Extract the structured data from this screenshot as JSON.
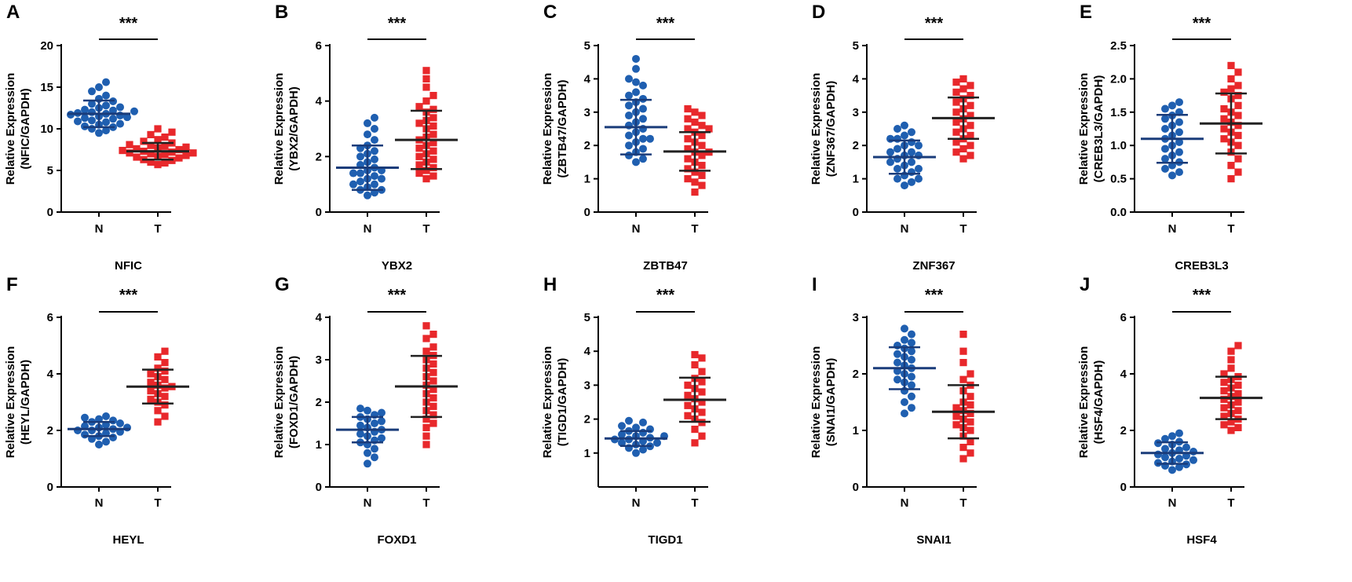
{
  "figure": {
    "ylabel_line1": "Relative Expression",
    "colors": {
      "normal": "#1f5fb0",
      "tumor": "#e8282b",
      "axis": "#000000"
    }
  },
  "chart_data": [
    {
      "type": "scatter",
      "panel": "A",
      "gene": "NFIC",
      "ylabel": "Relative Expression (NFIC/GAPDH)",
      "ylabel_line2": "(NFIC/GAPDH)",
      "categories": [
        "N",
        "T"
      ],
      "ylim": [
        0,
        20
      ],
      "yticks": [
        "0",
        "5",
        "10",
        "15",
        "20"
      ],
      "significance": "***",
      "series": [
        {
          "name": "N",
          "mean": 11.8,
          "sd": 1.6,
          "values": [
            9.5,
            9.8,
            10.0,
            10.2,
            10.3,
            10.5,
            10.6,
            10.8,
            10.9,
            11.0,
            11.2,
            11.3,
            11.4,
            11.5,
            11.6,
            11.7,
            11.8,
            11.9,
            12.0,
            12.1,
            12.2,
            12.3,
            12.5,
            12.6,
            12.8,
            13.0,
            13.3,
            13.6,
            14.0,
            14.5,
            15.0,
            15.6
          ]
        },
        {
          "name": "T",
          "mean": 7.3,
          "sd": 1.0,
          "values": [
            5.7,
            5.9,
            6.0,
            6.2,
            6.3,
            6.5,
            6.6,
            6.7,
            6.8,
            6.9,
            7.0,
            7.1,
            7.1,
            7.2,
            7.3,
            7.4,
            7.5,
            7.6,
            7.7,
            7.8,
            7.9,
            8.0,
            8.1,
            8.3,
            8.5,
            8.7,
            9.0,
            9.3,
            9.6,
            10.0
          ]
        }
      ]
    },
    {
      "type": "scatter",
      "panel": "B",
      "gene": "YBX2",
      "ylabel": "Relative Expression (YBX2/GAPDH)",
      "ylabel_line2": "(YBX2/GAPDH)",
      "categories": [
        "N",
        "T"
      ],
      "ylim": [
        0,
        6
      ],
      "yticks": [
        "0",
        "2",
        "4",
        "6"
      ],
      "significance": "***",
      "series": [
        {
          "name": "N",
          "mean": 1.6,
          "sd": 0.8,
          "values": [
            0.6,
            0.7,
            0.8,
            0.8,
            0.9,
            1.0,
            1.0,
            1.1,
            1.2,
            1.2,
            1.3,
            1.4,
            1.4,
            1.5,
            1.5,
            1.6,
            1.7,
            1.8,
            1.9,
            2.0,
            2.1,
            2.2,
            2.3,
            2.4,
            2.6,
            2.8,
            3.0,
            3.2,
            3.4
          ]
        },
        {
          "name": "T",
          "mean": 2.6,
          "sd": 1.05,
          "values": [
            1.2,
            1.3,
            1.4,
            1.5,
            1.6,
            1.7,
            1.8,
            1.9,
            2.0,
            2.1,
            2.2,
            2.3,
            2.4,
            2.5,
            2.6,
            2.7,
            2.8,
            3.0,
            3.1,
            3.2,
            3.3,
            3.4,
            3.6,
            3.7,
            3.8,
            4.0,
            4.2,
            4.5,
            4.8,
            5.1
          ]
        }
      ]
    },
    {
      "type": "scatter",
      "panel": "C",
      "gene": "ZBTB47",
      "ylabel": "Relative Expression (ZBTB47/GAPDH)",
      "ylabel_line2": "(ZBTB47/GAPDH)",
      "categories": [
        "N",
        "T"
      ],
      "ylim": [
        0,
        5
      ],
      "yticks": [
        "0",
        "1",
        "2",
        "3",
        "4",
        "5"
      ],
      "significance": "***",
      "series": [
        {
          "name": "N",
          "mean": 2.55,
          "sd": 0.82,
          "values": [
            1.5,
            1.6,
            1.7,
            1.8,
            1.9,
            2.0,
            2.1,
            2.2,
            2.2,
            2.3,
            2.4,
            2.5,
            2.6,
            2.7,
            2.8,
            2.9,
            3.0,
            3.1,
            3.2,
            3.3,
            3.4,
            3.5,
            3.6,
            3.8,
            3.9,
            4.0,
            4.3,
            4.6
          ]
        },
        {
          "name": "T",
          "mean": 1.82,
          "sd": 0.58,
          "values": [
            0.6,
            0.8,
            0.9,
            1.0,
            1.1,
            1.2,
            1.3,
            1.4,
            1.5,
            1.6,
            1.7,
            1.8,
            1.8,
            1.9,
            2.0,
            2.1,
            2.2,
            2.3,
            2.4,
            2.5,
            2.5,
            2.6,
            2.7,
            2.8,
            2.9,
            3.0,
            3.1
          ]
        }
      ]
    },
    {
      "type": "scatter",
      "panel": "D",
      "gene": "ZNF367",
      "ylabel": "Relative Expression (ZNF367/GAPDH)",
      "ylabel_line2": "(ZNF367/GAPDH)",
      "categories": [
        "N",
        "T"
      ],
      "ylim": [
        0,
        5
      ],
      "yticks": [
        "0",
        "1",
        "2",
        "3",
        "4",
        "5"
      ],
      "significance": "***",
      "series": [
        {
          "name": "N",
          "mean": 1.65,
          "sd": 0.5,
          "values": [
            0.8,
            0.9,
            1.0,
            1.0,
            1.1,
            1.2,
            1.3,
            1.3,
            1.4,
            1.5,
            1.5,
            1.6,
            1.7,
            1.7,
            1.8,
            1.8,
            1.9,
            2.0,
            2.0,
            2.1,
            2.2,
            2.2,
            2.3,
            2.4,
            2.5,
            2.6
          ]
        },
        {
          "name": "T",
          "mean": 2.82,
          "sd": 0.62,
          "values": [
            1.6,
            1.7,
            1.8,
            1.9,
            2.0,
            2.1,
            2.2,
            2.3,
            2.4,
            2.5,
            2.6,
            2.7,
            2.8,
            2.9,
            3.0,
            3.1,
            3.2,
            3.3,
            3.4,
            3.5,
            3.6,
            3.7,
            3.8,
            3.9,
            4.0
          ]
        }
      ]
    },
    {
      "type": "scatter",
      "panel": "E",
      "gene": "CREB3L3",
      "ylabel": "Relative Expression (CREB3L3/GAPDH)",
      "ylabel_line2": "(CREB3L3/GAPDH)",
      "categories": [
        "N",
        "T"
      ],
      "ylim": [
        0,
        2.5
      ],
      "yticks": [
        "0.0",
        "0.5",
        "1.0",
        "1.5",
        "2.0",
        "2.5"
      ],
      "significance": "***",
      "series": [
        {
          "name": "N",
          "mean": 1.1,
          "sd": 0.36,
          "values": [
            0.55,
            0.6,
            0.65,
            0.7,
            0.75,
            0.8,
            0.85,
            0.9,
            0.95,
            1.0,
            1.05,
            1.1,
            1.15,
            1.2,
            1.25,
            1.3,
            1.35,
            1.4,
            1.45,
            1.5,
            1.55,
            1.6,
            1.65
          ]
        },
        {
          "name": "T",
          "mean": 1.33,
          "sd": 0.45,
          "values": [
            0.5,
            0.6,
            0.7,
            0.8,
            0.9,
            1.0,
            1.05,
            1.1,
            1.15,
            1.2,
            1.25,
            1.3,
            1.35,
            1.4,
            1.45,
            1.5,
            1.55,
            1.6,
            1.7,
            1.75,
            1.8,
            1.85,
            1.9,
            2.0,
            2.1,
            2.2
          ]
        }
      ]
    },
    {
      "type": "scatter",
      "panel": "F",
      "gene": "HEYL",
      "ylabel": "Relative Expression (HEYL/GAPDH)",
      "ylabel_line2": "(HEYL/GAPDH)",
      "categories": [
        "N",
        "T"
      ],
      "ylim": [
        0,
        6
      ],
      "yticks": [
        "0",
        "2",
        "4",
        "6"
      ],
      "significance": "***",
      "series": [
        {
          "name": "N",
          "mean": 2.05,
          "sd": 0.25,
          "values": [
            1.5,
            1.6,
            1.7,
            1.75,
            1.8,
            1.85,
            1.9,
            1.95,
            2.0,
            2.0,
            2.05,
            2.1,
            2.1,
            2.15,
            2.2,
            2.25,
            2.3,
            2.35,
            2.4,
            2.45,
            2.5
          ]
        },
        {
          "name": "T",
          "mean": 3.55,
          "sd": 0.6,
          "values": [
            2.3,
            2.5,
            2.7,
            2.9,
            3.0,
            3.1,
            3.2,
            3.3,
            3.4,
            3.5,
            3.55,
            3.6,
            3.7,
            3.8,
            3.9,
            4.0,
            4.1,
            4.2,
            4.4,
            4.6,
            4.8
          ]
        }
      ]
    },
    {
      "type": "scatter",
      "panel": "G",
      "gene": "FOXD1",
      "ylabel": "Relative Expression (FOXD1/GAPDH)",
      "ylabel_line2": "(FOXD1/GAPDH)",
      "categories": [
        "N",
        "T"
      ],
      "ylim": [
        0,
        4
      ],
      "yticks": [
        "0",
        "1",
        "2",
        "3",
        "4"
      ],
      "significance": "***",
      "series": [
        {
          "name": "N",
          "mean": 1.35,
          "sd": 0.3,
          "values": [
            0.55,
            0.7,
            0.8,
            0.9,
            1.0,
            1.05,
            1.1,
            1.15,
            1.2,
            1.25,
            1.3,
            1.35,
            1.4,
            1.45,
            1.5,
            1.55,
            1.6,
            1.65,
            1.7,
            1.75,
            1.8,
            1.85
          ]
        },
        {
          "name": "T",
          "mean": 2.37,
          "sd": 0.72,
          "values": [
            1.0,
            1.2,
            1.4,
            1.5,
            1.6,
            1.7,
            1.8,
            1.9,
            2.0,
            2.1,
            2.2,
            2.3,
            2.4,
            2.5,
            2.6,
            2.7,
            2.8,
            2.9,
            3.0,
            3.1,
            3.2,
            3.3,
            3.5,
            3.6,
            3.8
          ]
        }
      ]
    },
    {
      "type": "scatter",
      "panel": "H",
      "gene": "TIGD1",
      "ylabel": "Relative Expression (TIGD1/GAPDH)",
      "ylabel_line2": "(TIGD1/GAPDH)",
      "categories": [
        "N",
        "T"
      ],
      "ylim": [
        0,
        5
      ],
      "yticks": [
        "1",
        "2",
        "3",
        "4",
        "5"
      ],
      "significance": "***",
      "series": [
        {
          "name": "N",
          "mean": 1.43,
          "sd": 0.22,
          "values": [
            1.0,
            1.1,
            1.15,
            1.2,
            1.25,
            1.3,
            1.3,
            1.35,
            1.4,
            1.4,
            1.45,
            1.5,
            1.5,
            1.55,
            1.6,
            1.65,
            1.7,
            1.75,
            1.8,
            1.9,
            1.95
          ]
        },
        {
          "name": "T",
          "mean": 2.57,
          "sd": 0.65,
          "values": [
            1.3,
            1.5,
            1.7,
            1.9,
            2.0,
            2.1,
            2.2,
            2.3,
            2.4,
            2.5,
            2.6,
            2.7,
            2.8,
            2.9,
            3.0,
            3.1,
            3.2,
            3.4,
            3.6,
            3.8,
            3.9
          ]
        }
      ]
    },
    {
      "type": "scatter",
      "panel": "I",
      "gene": "SNAI1",
      "ylabel": "Relative Expression (SNAI1/GAPDH)",
      "ylabel_line2": "(SNAI1/GAPDH)",
      "categories": [
        "N",
        "T"
      ],
      "ylim": [
        0,
        3
      ],
      "yticks": [
        "0",
        "1",
        "2",
        "3"
      ],
      "significance": "***",
      "series": [
        {
          "name": "N",
          "mean": 2.1,
          "sd": 0.37,
          "values": [
            1.3,
            1.4,
            1.5,
            1.6,
            1.7,
            1.8,
            1.85,
            1.9,
            1.95,
            2.0,
            2.05,
            2.1,
            2.15,
            2.2,
            2.25,
            2.3,
            2.35,
            2.4,
            2.45,
            2.5,
            2.55,
            2.6,
            2.7,
            2.8
          ]
        },
        {
          "name": "T",
          "mean": 1.33,
          "sd": 0.47,
          "values": [
            0.5,
            0.6,
            0.7,
            0.8,
            0.9,
            1.0,
            1.05,
            1.1,
            1.15,
            1.2,
            1.25,
            1.3,
            1.35,
            1.4,
            1.45,
            1.5,
            1.6,
            1.7,
            1.8,
            1.9,
            2.0,
            2.2,
            2.4,
            2.7
          ]
        }
      ]
    },
    {
      "type": "scatter",
      "panel": "J",
      "gene": "HSF4",
      "ylabel": "Relative Expression (HSF4/GAPDH)",
      "ylabel_line2": "(HSF4/GAPDH)",
      "categories": [
        "N",
        "T"
      ],
      "ylim": [
        0,
        6
      ],
      "yticks": [
        "0",
        "2",
        "4",
        "6"
      ],
      "significance": "***",
      "series": [
        {
          "name": "N",
          "mean": 1.2,
          "sd": 0.38,
          "values": [
            0.6,
            0.7,
            0.75,
            0.8,
            0.85,
            0.9,
            0.95,
            1.0,
            1.05,
            1.1,
            1.15,
            1.2,
            1.25,
            1.3,
            1.35,
            1.4,
            1.5,
            1.55,
            1.6,
            1.7,
            1.8,
            1.9
          ]
        },
        {
          "name": "T",
          "mean": 3.15,
          "sd": 0.75,
          "values": [
            2.0,
            2.1,
            2.2,
            2.3,
            2.4,
            2.5,
            2.6,
            2.7,
            2.8,
            2.9,
            3.0,
            3.1,
            3.2,
            3.3,
            3.4,
            3.5,
            3.6,
            3.7,
            3.8,
            3.9,
            4.0,
            4.2,
            4.5,
            4.8,
            5.0
          ]
        }
      ]
    }
  ]
}
